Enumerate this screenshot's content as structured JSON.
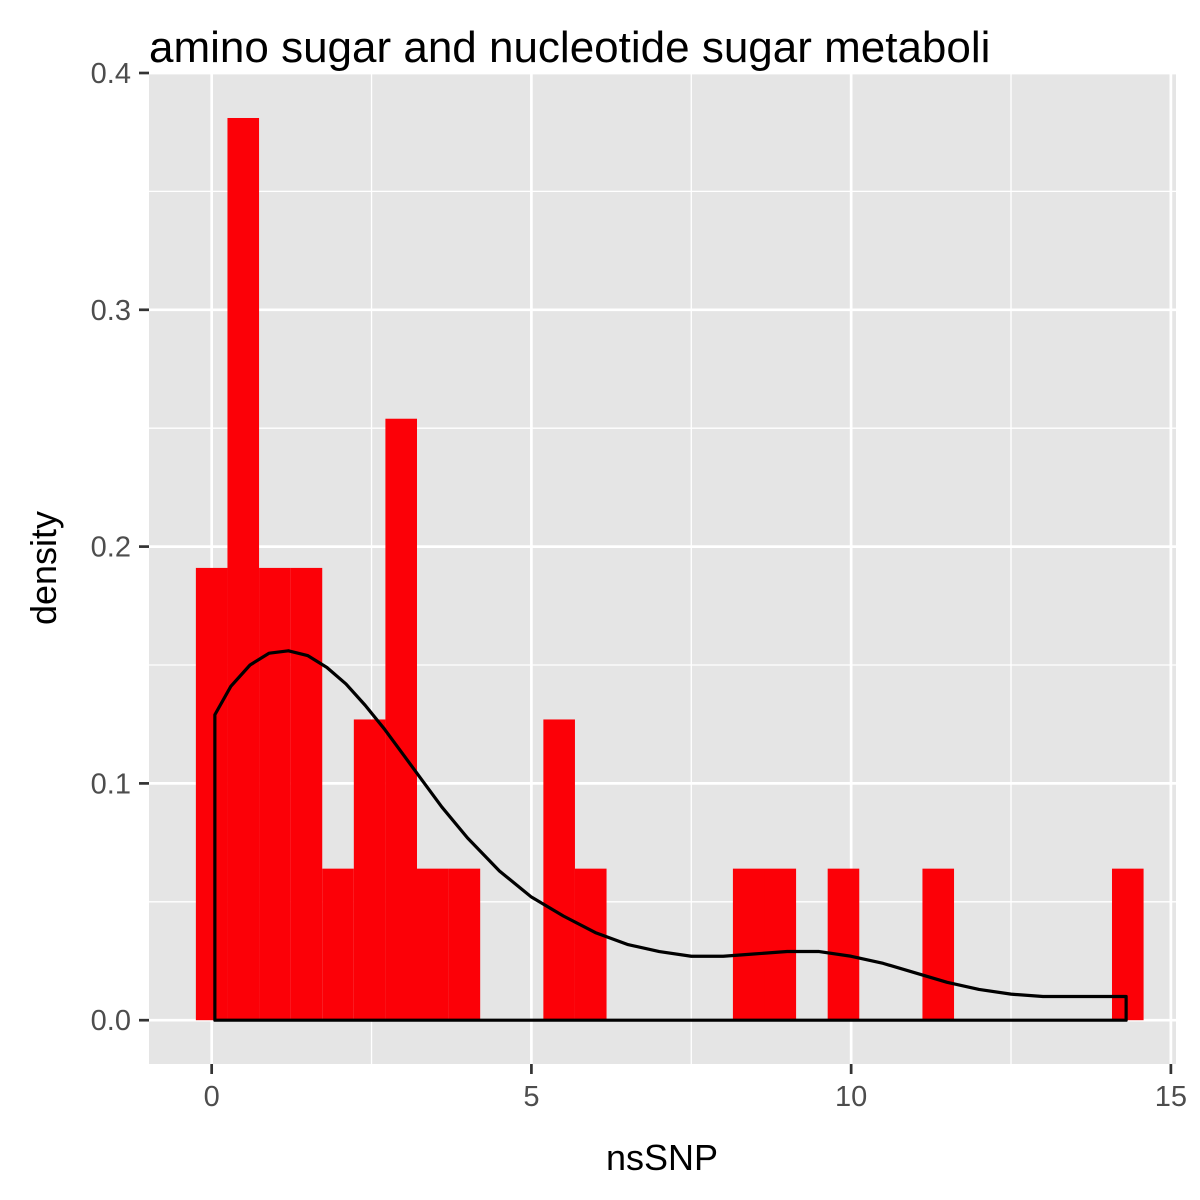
{
  "chart_data": {
    "type": "bar",
    "title": "amino sugar and nucleotide sugar metaboli",
    "xlabel": "nsSNP",
    "ylabel": "density",
    "xlim": [
      -0.98,
      15.08
    ],
    "ylim": [
      -0.0185,
      0.4
    ],
    "x_ticks": [
      0,
      5,
      10,
      15
    ],
    "y_ticks": [
      0.0,
      0.1,
      0.2,
      0.3,
      0.4
    ],
    "x_tick_labels": [
      "0",
      "5",
      "10",
      "15"
    ],
    "y_tick_labels": [
      "0.0",
      "0.1",
      "0.2",
      "0.3",
      "0.4"
    ],
    "grid": true,
    "bin_width": 0.494,
    "bins": [
      {
        "x0": -0.247,
        "x1": 0.247,
        "density": 0.191
      },
      {
        "x0": 0.247,
        "x1": 0.741,
        "density": 0.381
      },
      {
        "x0": 0.741,
        "x1": 1.235,
        "density": 0.191
      },
      {
        "x0": 1.235,
        "x1": 1.729,
        "density": 0.191
      },
      {
        "x0": 1.729,
        "x1": 2.223,
        "density": 0.064
      },
      {
        "x0": 2.223,
        "x1": 2.717,
        "density": 0.127
      },
      {
        "x0": 2.717,
        "x1": 3.211,
        "density": 0.254
      },
      {
        "x0": 3.211,
        "x1": 3.705,
        "density": 0.064
      },
      {
        "x0": 3.705,
        "x1": 4.199,
        "density": 0.064
      },
      {
        "x0": 5.187,
        "x1": 5.681,
        "density": 0.127
      },
      {
        "x0": 5.681,
        "x1": 6.175,
        "density": 0.064
      },
      {
        "x0": 8.151,
        "x1": 8.645,
        "density": 0.064
      },
      {
        "x0": 8.645,
        "x1": 9.139,
        "density": 0.064
      },
      {
        "x0": 9.633,
        "x1": 10.127,
        "density": 0.064
      },
      {
        "x0": 11.115,
        "x1": 11.609,
        "density": 0.064
      },
      {
        "x0": 14.079,
        "x1": 14.573,
        "density": 0.064
      }
    ],
    "density_curve": {
      "x": [
        0.05,
        0.3,
        0.6,
        0.9,
        1.2,
        1.5,
        1.8,
        2.1,
        2.4,
        2.7,
        3.0,
        3.3,
        3.6,
        4.0,
        4.5,
        5.0,
        5.5,
        6.0,
        6.5,
        7.0,
        7.5,
        8.0,
        8.5,
        9.0,
        9.5,
        10.0,
        10.5,
        11.0,
        11.5,
        12.0,
        12.5,
        13.0,
        13.5,
        14.0,
        14.3
      ],
      "y": [
        0.129,
        0.141,
        0.15,
        0.155,
        0.156,
        0.154,
        0.149,
        0.142,
        0.133,
        0.123,
        0.112,
        0.101,
        0.09,
        0.077,
        0.063,
        0.052,
        0.044,
        0.037,
        0.032,
        0.029,
        0.027,
        0.027,
        0.028,
        0.029,
        0.029,
        0.027,
        0.024,
        0.02,
        0.016,
        0.013,
        0.011,
        0.01,
        0.01,
        0.01,
        0.01
      ]
    },
    "bar_color": "#fc0007",
    "curve_color": "#000000",
    "panel_background": "#e5e5e5",
    "grid_color": "#ffffff"
  }
}
